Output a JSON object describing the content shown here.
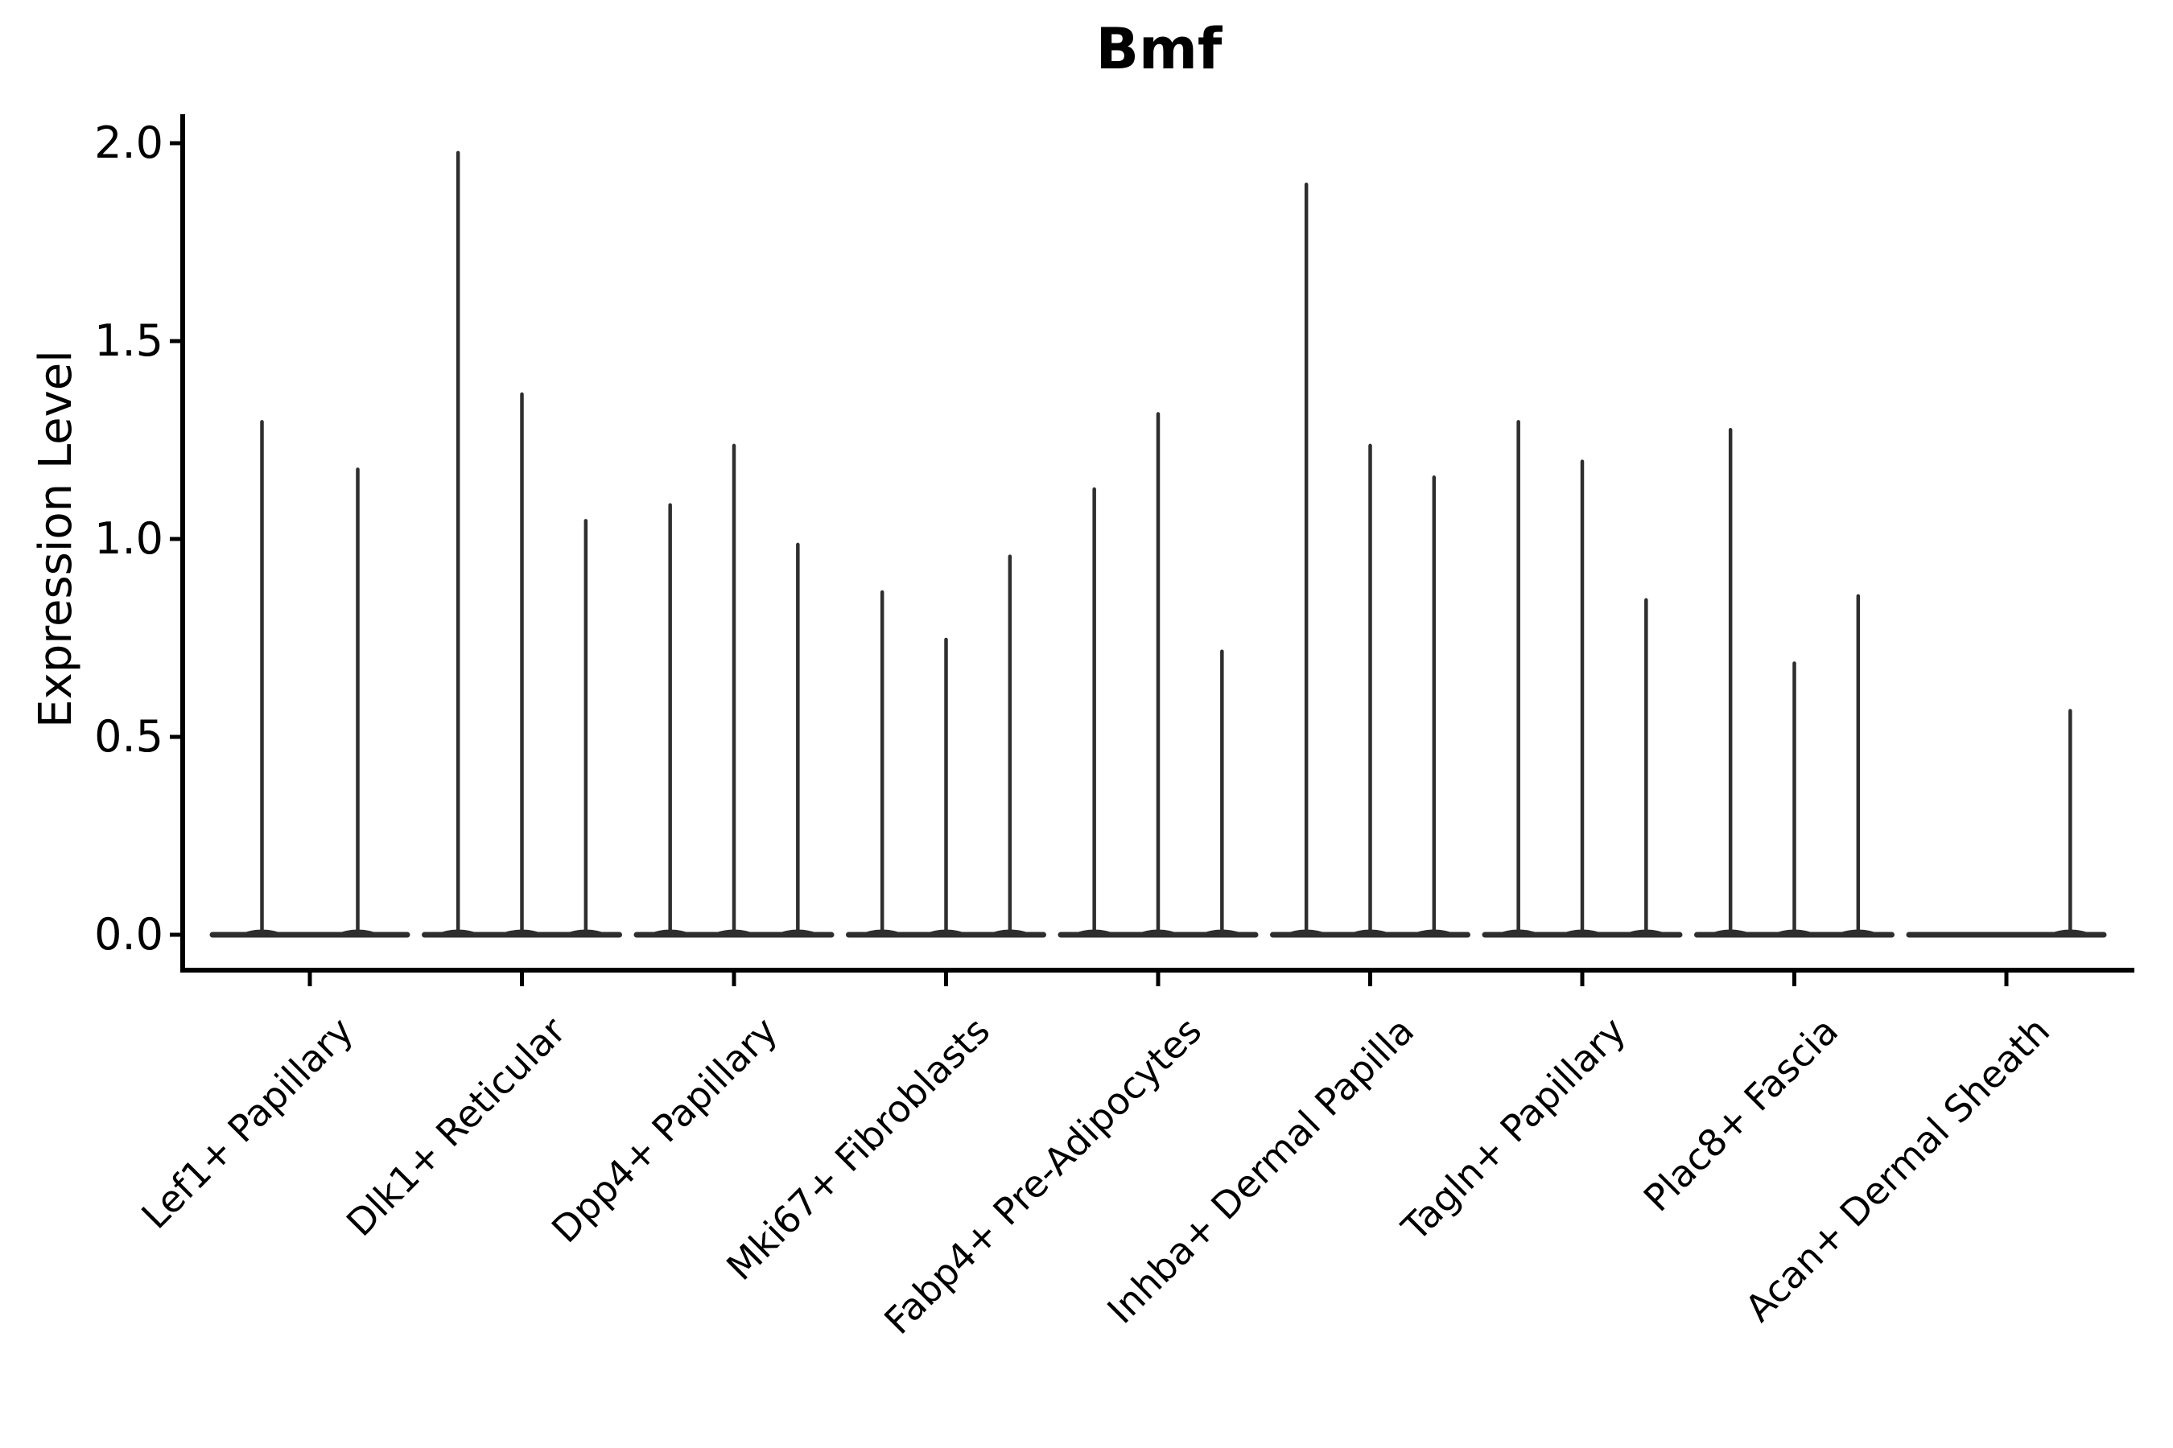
{
  "figure": {
    "title": "Bmf",
    "ylabel": "Expression Level"
  },
  "chart_data": {
    "type": "violin",
    "title": "Bmf",
    "xlabel": "",
    "ylabel": "Expression Level",
    "ylim": [
      0.0,
      2.05
    ],
    "yticks": [
      "0.0",
      "0.5",
      "1.0",
      "1.5",
      "2.0"
    ],
    "grid": false,
    "legend_position": "none",
    "x_tick_rotation_deg": 45,
    "categories": [
      "Lef1+ Papillary",
      "Dlk1+ Reticular",
      "Dpp4+ Papillary",
      "Mki67+ Fibroblasts",
      "Fabp4+ Pre-Adipocytes",
      "Inhba+ Dermal Papilla",
      "Tagln+ Papillary",
      "Plac8+ Fascia",
      "Acan+ Dermal Sheath"
    ],
    "violin_note": "Each category holds several very thin violins on a flat baseline at 0; value listed is the peak (max expression) of each violin spike. 0 means a flat violin with no spike.",
    "violins_per_category": [
      [
        1.3,
        1.18
      ],
      [
        1.98,
        1.37,
        1.05
      ],
      [
        1.09,
        1.24,
        0.99
      ],
      [
        0.87,
        0.75,
        0.96
      ],
      [
        1.13,
        1.32,
        0.72
      ],
      [
        1.9,
        1.24,
        1.16
      ],
      [
        1.3,
        1.2,
        0.85
      ],
      [
        1.28,
        0.69,
        0.86
      ],
      [
        0.0,
        0.0,
        0.57
      ]
    ]
  },
  "style": {
    "violin_color": "#2e2e2e",
    "axis_color": "#000000",
    "background": "#ffffff"
  }
}
